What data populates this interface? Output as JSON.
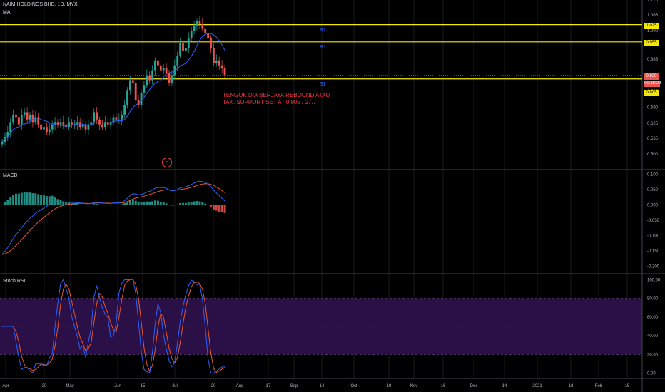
{
  "header": {
    "symbol": "NAIM HOLDINGS BHD, 1D, MYX",
    "ma_label": "MA",
    "macd_label": "MACD",
    "stoch_label": "Stoch RSI"
  },
  "levels": {
    "r2": "R2",
    "r1": "R1",
    "s1": "S1"
  },
  "badges": {
    "r2": "1.025",
    "r1": "0.955",
    "last": "0.820",
    "countdown": "00:38:29",
    "s1": "0.805"
  },
  "annotation": {
    "line1": "TENGOK DIA BERJAYA REBOUND ATAU",
    "line2": "TAK. SUPPORT SET AT 0.805 / 27.7"
  },
  "earnings_marker": "E",
  "colors": {
    "up": "#26a69a",
    "down": "#ef5350",
    "level_line": "#f5e800",
    "ma": "#2962ff",
    "macd_signal": "#e8582c",
    "stoch_band": "#2b0f47",
    "text_red": "#f23645"
  },
  "chart_data": [
    {
      "type": "candlestick",
      "title": "NAIM HOLDINGS BHD, 1D, MYX",
      "ylim": [
        0.44,
        1.125
      ],
      "y_ticks": [
        "1.125",
        "1.065",
        "1.000",
        "0.950",
        "0.885",
        "0.820",
        "0.755",
        "0.690",
        "0.625",
        "0.565",
        "0.500"
      ],
      "x_ticks": [
        "Apr",
        "20",
        "May",
        "Jun",
        "15",
        "Jul",
        "20",
        "Aug",
        "17",
        "Sep",
        "14",
        "Oct",
        "19",
        "Nov",
        "16",
        "Dec",
        "14",
        "2021",
        "18",
        "Feb",
        "15"
      ],
      "levels": [
        {
          "name": "R2",
          "value": 1.025
        },
        {
          "name": "R1",
          "value": 0.955
        },
        {
          "name": "S1",
          "value": 0.805
        }
      ],
      "last_price": 0.82,
      "closes": [
        0.55,
        0.57,
        0.59,
        0.63,
        0.66,
        0.65,
        0.62,
        0.66,
        0.67,
        0.64,
        0.66,
        0.63,
        0.65,
        0.62,
        0.6,
        0.61,
        0.59,
        0.6,
        0.62,
        0.63,
        0.62,
        0.63,
        0.62,
        0.61,
        0.63,
        0.62,
        0.62,
        0.63,
        0.61,
        0.62,
        0.6,
        0.62,
        0.63,
        0.67,
        0.64,
        0.62,
        0.61,
        0.63,
        0.62,
        0.63,
        0.65,
        0.64,
        0.64,
        0.66,
        0.7,
        0.76,
        0.8,
        0.79,
        0.72,
        0.7,
        0.75,
        0.78,
        0.82,
        0.8,
        0.84,
        0.88,
        0.86,
        0.84,
        0.85,
        0.83,
        0.79,
        0.82,
        0.86,
        0.9,
        0.95,
        0.92,
        0.93,
        0.97,
        1.0,
        1.02,
        1.04,
        1.03,
        1.01,
        0.99,
        0.97,
        0.93,
        0.87,
        0.88,
        0.86,
        0.85,
        0.82
      ]
    },
    {
      "type": "macd",
      "title": "MACD",
      "ylim": [
        -0.22,
        0.11
      ],
      "y_ticks": [
        "0.100",
        "0.050",
        "0.000",
        "-0.050",
        "-0.100",
        "-0.150",
        "-0.200"
      ]
    },
    {
      "type": "line",
      "title": "Stoch RSI",
      "ylim": [
        -5,
        105
      ],
      "y_ticks": [
        "100.00",
        "80.00",
        "60.00",
        "40.00",
        "20.00",
        "0.00"
      ],
      "band": [
        20,
        80
      ]
    }
  ]
}
